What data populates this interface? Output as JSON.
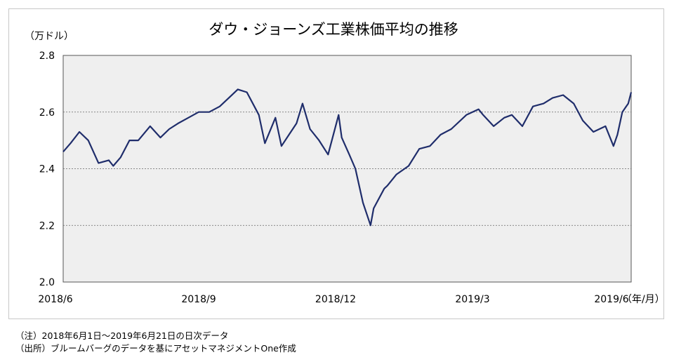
{
  "chart_data": {
    "type": "line",
    "title": "ダウ・ジョーンズ工業株価平均の推移",
    "ylabel": "（万ドル）",
    "xlabel": "（年/月）",
    "ylim": [
      2.0,
      2.8
    ],
    "yticks": [
      "2.0",
      "2.2",
      "2.4",
      "2.6",
      "2.8"
    ],
    "xticks": [
      "2018/6",
      "2018/9",
      "2018/12",
      "2019/3",
      "2019/6"
    ],
    "grid": "horizontal dotted",
    "line_color": "#1f2d6b",
    "plot_background": "#efefef",
    "series": [
      {
        "x": [
          "2018-06-01",
          "2018-06-06",
          "2018-06-12",
          "2018-06-18",
          "2018-06-25",
          "2018-07-02",
          "2018-07-05",
          "2018-07-10",
          "2018-07-16",
          "2018-07-22",
          "2018-07-30",
          "2018-08-06",
          "2018-08-12",
          "2018-08-18",
          "2018-08-25",
          "2018-09-01",
          "2018-09-08",
          "2018-09-15",
          "2018-09-21",
          "2018-09-27",
          "2018-10-03",
          "2018-10-08",
          "2018-10-11",
          "2018-10-15",
          "2018-10-22",
          "2018-10-26",
          "2018-10-31",
          "2018-11-05",
          "2018-11-09",
          "2018-11-14",
          "2018-11-20",
          "2018-11-26",
          "2018-12-03",
          "2018-12-05",
          "2018-12-10",
          "2018-12-14",
          "2018-12-19",
          "2018-12-24",
          "2018-12-26",
          "2019-01-02",
          "2019-01-04",
          "2019-01-10",
          "2019-01-18",
          "2019-01-25",
          "2019-02-01",
          "2019-02-08",
          "2019-02-15",
          "2019-02-25",
          "2019-03-05",
          "2019-03-08",
          "2019-03-15",
          "2019-03-22",
          "2019-03-27",
          "2019-04-03",
          "2019-04-10",
          "2019-04-17",
          "2019-04-23",
          "2019-04-30",
          "2019-05-07",
          "2019-05-13",
          "2019-05-20",
          "2019-05-28",
          "2019-06-03",
          "2019-06-07",
          "2019-06-12",
          "2019-06-18",
          "2019-06-21"
        ],
        "values": [
          2.46,
          2.49,
          2.53,
          2.5,
          2.42,
          2.43,
          2.41,
          2.44,
          2.5,
          2.5,
          2.55,
          2.51,
          2.54,
          2.56,
          2.58,
          2.6,
          2.6,
          2.62,
          2.65,
          2.68,
          2.67,
          2.62,
          2.59,
          2.49,
          2.58,
          2.48,
          2.52,
          2.56,
          2.63,
          2.54,
          2.5,
          2.45,
          2.59,
          2.51,
          2.45,
          2.4,
          2.28,
          2.2,
          2.26,
          2.33,
          2.34,
          2.38,
          2.41,
          2.47,
          2.48,
          2.52,
          2.54,
          2.59,
          2.61,
          2.59,
          2.55,
          2.58,
          2.59,
          2.55,
          2.62,
          2.63,
          2.65,
          2.66,
          2.63,
          2.57,
          2.53,
          2.55,
          2.48,
          2.52,
          2.6,
          2.63,
          2.67
        ]
      }
    ]
  },
  "notes": [
    "（注）2018年6月1日～2019年6月21日の日次データ",
    "（出所）ブルームバーグのデータを基にアセットマネジメントOne作成"
  ]
}
